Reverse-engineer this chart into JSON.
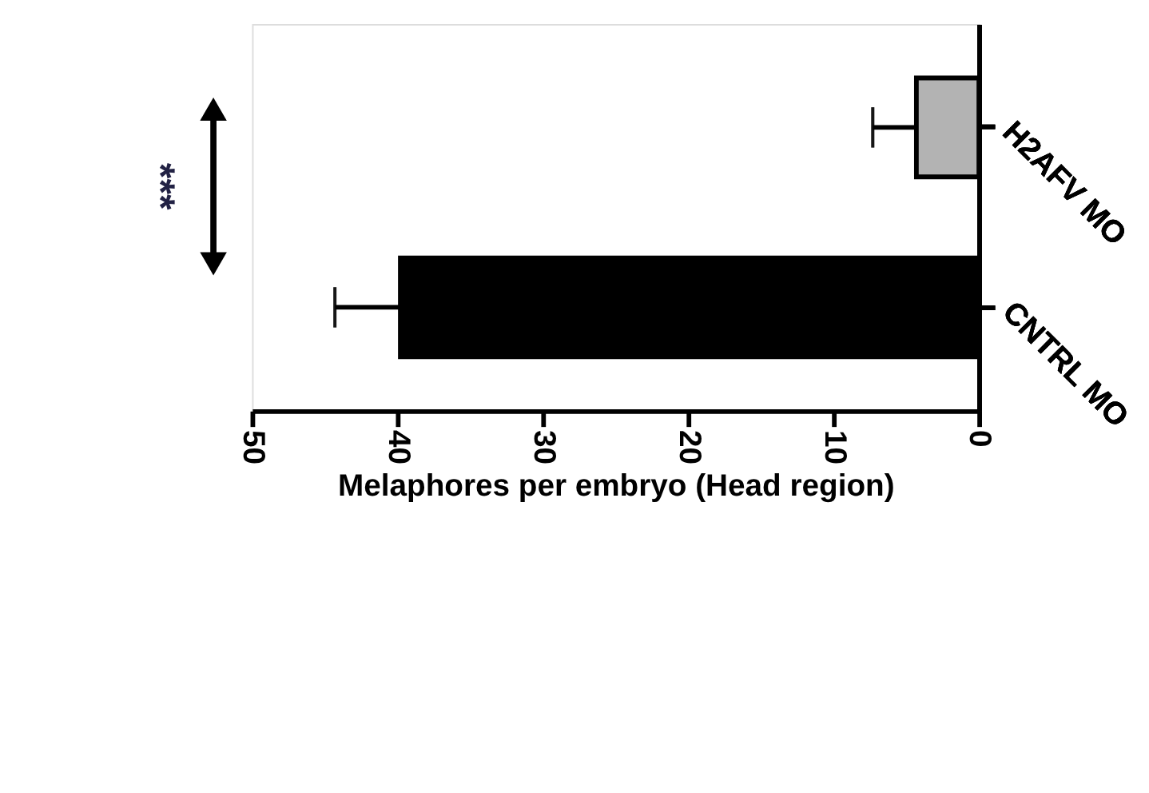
{
  "chart_data": {
    "type": "bar",
    "orientation": "horizontal",
    "xlabel": "Melaphores per embryo (Head region)",
    "categories": [
      "H2AFV MO",
      "CNTRL MO"
    ],
    "values": [
      4.3,
      39.8
    ],
    "colors": [
      "#b3b3b3",
      "#000000"
    ],
    "errors": [
      [
        4.3,
        7.3
      ],
      [
        39.8,
        44.3
      ]
    ],
    "xlim": [
      50,
      0
    ],
    "xticks": [
      0,
      10,
      20,
      30,
      40,
      50
    ],
    "annotations": [
      "***"
    ],
    "grid": false
  }
}
